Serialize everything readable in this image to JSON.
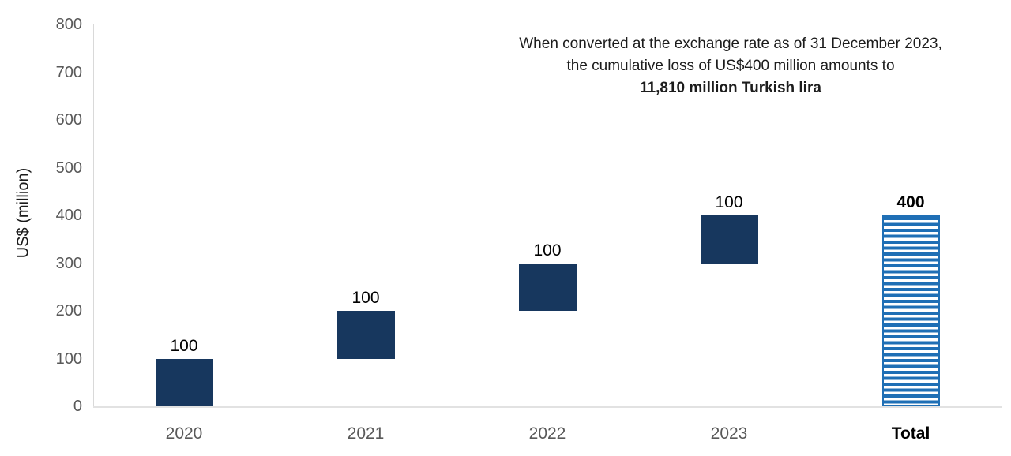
{
  "chart_data": {
    "type": "bar",
    "subtype": "waterfall",
    "ylabel": "US$ (million)",
    "ylim": [
      0,
      800
    ],
    "ytick_interval": 100,
    "yticks": [
      0,
      100,
      200,
      300,
      400,
      500,
      600,
      700,
      800
    ],
    "categories": [
      "2020",
      "2021",
      "2022",
      "2023",
      "Total"
    ],
    "bars": [
      {
        "category": "2020",
        "start": 0,
        "end": 100,
        "value_label": "100",
        "style": "solid",
        "label_bold": false,
        "category_bold": false
      },
      {
        "category": "2021",
        "start": 100,
        "end": 200,
        "value_label": "100",
        "style": "solid",
        "label_bold": false,
        "category_bold": false
      },
      {
        "category": "2022",
        "start": 200,
        "end": 300,
        "value_label": "100",
        "style": "solid",
        "label_bold": false,
        "category_bold": false
      },
      {
        "category": "2023",
        "start": 300,
        "end": 400,
        "value_label": "100",
        "style": "solid",
        "label_bold": false,
        "category_bold": false
      },
      {
        "category": "Total",
        "start": 0,
        "end": 400,
        "value_label": "400",
        "style": "striped",
        "label_bold": true,
        "category_bold": true
      }
    ],
    "annotation": {
      "line1": "When converted at the exchange rate as of 31 December 2023,",
      "line2": "the cumulative loss of US$400 million amounts to",
      "line3": "11,810 million Turkish lira"
    },
    "colors": {
      "solid_bar": "#17375e",
      "striped_bar_blue": "#1f6fb5",
      "striped_bar_gap": "#ffffff",
      "axis_line": "#d9d9d9",
      "tick_text": "#595959",
      "label_text": "#000000"
    },
    "legend": null,
    "grid": false
  }
}
